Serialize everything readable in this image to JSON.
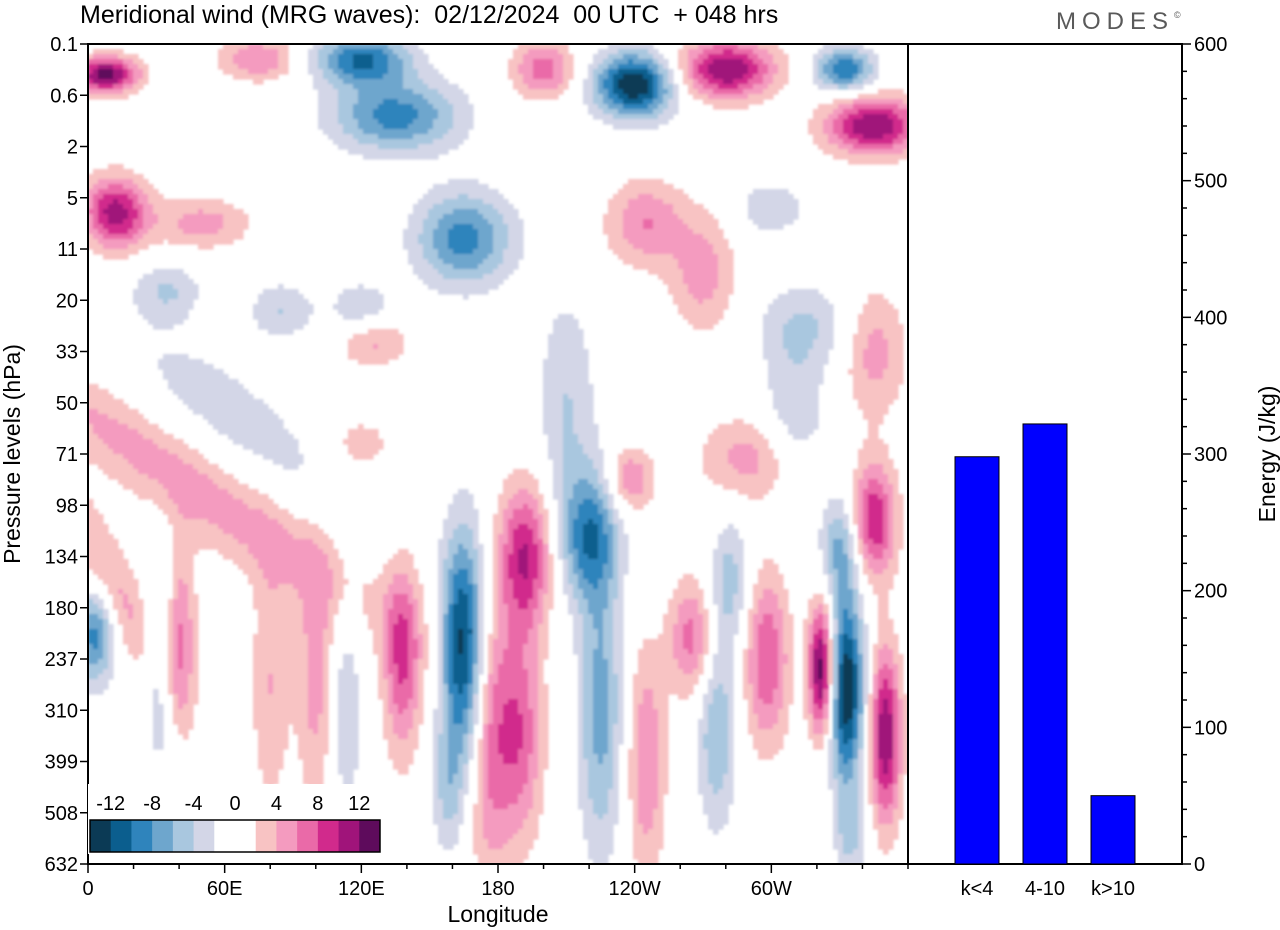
{
  "title": "Meridional wind (MRG waves):  02/12/2024  00 UTC  + 048 hrs",
  "logo": {
    "text": "MODES",
    "mark": "©"
  },
  "colors": {
    "palette": [
      "#0b3a55",
      "#0b5e8e",
      "#2f84bc",
      "#6ea6cd",
      "#a9c7df",
      "#d3d6e7",
      "#ffffff",
      "#ffffff",
      "#f8c3c3",
      "#f49bbf",
      "#ea6aa8",
      "#d12a8c",
      "#a0147a",
      "#5e0b5c"
    ],
    "bar": "#0000ff"
  },
  "chart_data": [
    {
      "type": "heatmap",
      "title": "Meridional wind (MRG waves):  02/12/2024  00 UTC  + 048 hrs",
      "xlabel": "Longitude",
      "ylabel": "Pressure levels (hPa)",
      "x_ticks": [
        "0",
        "60E",
        "120E",
        "180",
        "120W",
        "60W"
      ],
      "x_range_deg": [
        0,
        360
      ],
      "y_ticks": [
        "0.1",
        "0.6",
        "2",
        "5",
        "11",
        "20",
        "33",
        "50",
        "71",
        "98",
        "134",
        "180",
        "237",
        "310",
        "399",
        "508",
        "632"
      ],
      "colorbar": {
        "labels": [
          "-12",
          "-8",
          "-4",
          "0",
          "4",
          "8",
          "12"
        ],
        "levels": [
          -14,
          -12,
          -10,
          -8,
          -6,
          -4,
          -2,
          0,
          2,
          4,
          6,
          8,
          10,
          12,
          14
        ]
      },
      "features": [
        {
          "lon": 8,
          "lev": 0.6,
          "v": 13,
          "w": 20,
          "h": 0.5
        },
        {
          "lon": 120,
          "lev": 0.3,
          "v": -10,
          "w": 30,
          "h": 0.7
        },
        {
          "lon": 75,
          "lev": 0.3,
          "v": 6,
          "w": 25,
          "h": 0.6
        },
        {
          "lon": 135,
          "lev": 1.4,
          "v": -9,
          "w": 40,
          "h": 1.0
        },
        {
          "lon": 165,
          "lev": 3.8,
          "v": -9,
          "w": 30,
          "h": 1.3
        },
        {
          "lon": 200,
          "lev": 0.5,
          "v": 7,
          "w": 20,
          "h": 0.8
        },
        {
          "lon": 240,
          "lev": 0.8,
          "v": -14,
          "w": 25,
          "h": 0.9
        },
        {
          "lon": 280,
          "lev": 0.5,
          "v": 12,
          "w": 30,
          "h": 0.8
        },
        {
          "lon": 332,
          "lev": 0.5,
          "v": -10,
          "w": 18,
          "h": 0.6
        },
        {
          "lon": 345,
          "lev": 1.6,
          "v": 12,
          "w": 30,
          "h": 0.8
        },
        {
          "lon": 12,
          "lev": 3.3,
          "v": 11,
          "w": 20,
          "h": 1.0
        },
        {
          "lon": 50,
          "lev": 3.5,
          "v": 5,
          "w": 30,
          "h": 0.7
        },
        {
          "lon": 245,
          "lev": 3.5,
          "v": 6,
          "w": 25,
          "h": 1.2
        },
        {
          "lon": 300,
          "lev": 3.2,
          "v": -4,
          "w": 20,
          "h": 0.7
        },
        {
          "lon": 35,
          "lev": 4.8,
          "v": -4,
          "w": 20,
          "h": 0.8
        },
        {
          "lon": 85,
          "lev": 5.2,
          "v": -4,
          "w": 20,
          "h": 0.8
        },
        {
          "lon": 120,
          "lev": 5.2,
          "v": -4,
          "w": 20,
          "h": 0.8
        },
        {
          "lon": 270,
          "lev": 4.5,
          "v": 5,
          "w": 20,
          "h": 1.6
        },
        {
          "lon": 315,
          "lev": 5.5,
          "v": -4,
          "w": 30,
          "h": 1.2
        },
        {
          "lon": 345,
          "lev": 6.0,
          "v": 5,
          "w": 20,
          "h": 1.8
        },
        {
          "lon": 125,
          "lev": 5.8,
          "v": 5,
          "w": 22,
          "h": 0.7
        },
        {
          "lon": 40,
          "lev": 8.2,
          "v": 9,
          "w": 45,
          "h": 3.8,
          "tilt": 0.6
        },
        {
          "lon": 30,
          "lev": 7.5,
          "v": -5,
          "w": 40,
          "h": 3.3,
          "tilt": 0.6
        },
        {
          "lon": 70,
          "lev": 7.5,
          "v": -3,
          "w": 40,
          "h": 3.0,
          "tilt": 0.5
        },
        {
          "lon": 210,
          "lev": 7.0,
          "v": -4,
          "w": 18,
          "h": 3.0
        },
        {
          "lon": 290,
          "lev": 8.1,
          "v": 5,
          "w": 30,
          "h": 1.2
        },
        {
          "lon": 120,
          "lev": 7.8,
          "v": 4,
          "w": 15,
          "h": 0.6
        },
        {
          "lon": 238,
          "lev": 8.5,
          "v": 6,
          "w": 14,
          "h": 0.9
        },
        {
          "lon": 310,
          "lev": 7.2,
          "v": -4,
          "w": 20,
          "h": 1.8
        },
        {
          "lon": 3,
          "lev": 11.5,
          "v": -9,
          "w": 12,
          "h": 1.4
        },
        {
          "lon": 10,
          "lev": 10.5,
          "v": 5,
          "w": 18,
          "h": 2.8,
          "tilt": 0.6
        },
        {
          "lon": 32,
          "lev": 12.0,
          "v": -5,
          "w": 10,
          "h": 3.0
        },
        {
          "lon": 40,
          "lev": 11.6,
          "v": 7,
          "w": 10,
          "h": 2.5
        },
        {
          "lon": 80,
          "lev": 12.5,
          "v": 4,
          "w": 12,
          "h": 3.5
        },
        {
          "lon": 100,
          "lev": 12.4,
          "v": 5,
          "w": 12,
          "h": 3.5
        },
        {
          "lon": 113,
          "lev": 13.0,
          "v": -4,
          "w": 10,
          "h": 3.0
        },
        {
          "lon": 138,
          "lev": 12.0,
          "v": 8,
          "w": 12,
          "h": 2.7
        },
        {
          "lon": 165,
          "lev": 11.8,
          "v": -14,
          "w": 14,
          "h": 3.2
        },
        {
          "lon": 158,
          "lev": 14.6,
          "v": -4,
          "w": 10,
          "h": 1.8
        },
        {
          "lon": 176,
          "lev": 13.5,
          "v": 7,
          "w": 14,
          "h": 4.0
        },
        {
          "lon": 192,
          "lev": 10.0,
          "v": 10,
          "w": 16,
          "h": 2.0
        },
        {
          "lon": 190,
          "lev": 13.5,
          "v": 7,
          "w": 14,
          "h": 3.0
        },
        {
          "lon": 220,
          "lev": 9.6,
          "v": -9,
          "w": 18,
          "h": 1.8
        },
        {
          "lon": 225,
          "lev": 13.0,
          "v": -7,
          "w": 14,
          "h": 4.0
        },
        {
          "lon": 245,
          "lev": 14.0,
          "v": 6,
          "w": 12,
          "h": 3.2
        },
        {
          "lon": 265,
          "lev": 11.6,
          "v": 7,
          "w": 14,
          "h": 1.6
        },
        {
          "lon": 276,
          "lev": 13.4,
          "v": -6,
          "w": 12,
          "h": 2.7
        },
        {
          "lon": 282,
          "lev": 10.5,
          "v": -5,
          "w": 12,
          "h": 1.8
        },
        {
          "lon": 298,
          "lev": 12.0,
          "v": 8,
          "w": 14,
          "h": 2.4
        },
        {
          "lon": 322,
          "lev": 12.2,
          "v": 14,
          "w": 8,
          "h": 1.8
        },
        {
          "lon": 333,
          "lev": 12.6,
          "v": -14,
          "w": 11,
          "h": 2.7
        },
        {
          "lon": 330,
          "lev": 9.8,
          "v": -6,
          "w": 12,
          "h": 1.4
        },
        {
          "lon": 345,
          "lev": 9.3,
          "v": 10,
          "w": 14,
          "h": 1.6
        },
        {
          "lon": 350,
          "lev": 13.5,
          "v": 12,
          "w": 10,
          "h": 2.4
        },
        {
          "lon": 335,
          "lev": 15.5,
          "v": -4,
          "w": 10,
          "h": 1.0
        }
      ]
    },
    {
      "type": "bar",
      "categories": [
        "k<4",
        "4-10",
        "k>10"
      ],
      "values": [
        298,
        322,
        50
      ],
      "ylabel": "Energy (J/kg)",
      "ylim": [
        0,
        600
      ],
      "y_ticks": [
        "0",
        "100",
        "200",
        "300",
        "400",
        "500",
        "600"
      ]
    }
  ]
}
